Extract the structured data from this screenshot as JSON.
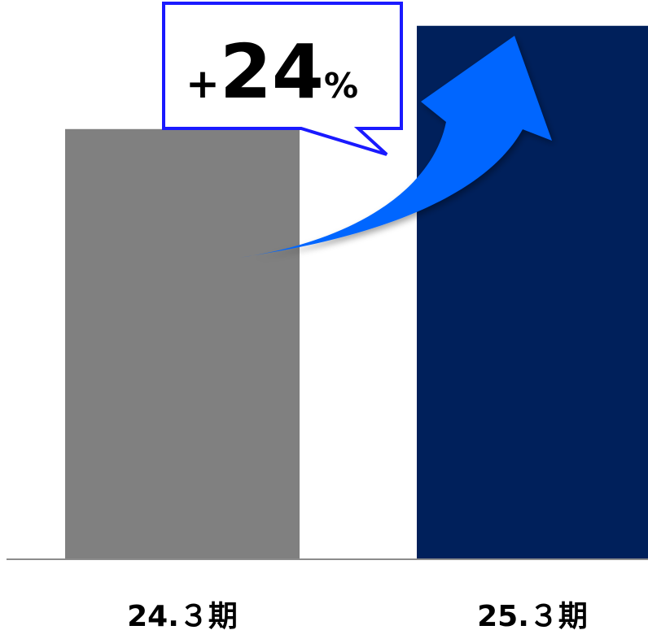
{
  "chart_data": {
    "type": "bar",
    "categories": [
      "24.３期",
      "25.３期"
    ],
    "values": [
      100,
      124
    ],
    "title": "",
    "xlabel": "",
    "ylabel": "",
    "ylim": [
      0,
      130
    ],
    "grid": false,
    "legend": "none",
    "bar_colors": [
      "#808080",
      "#00205b"
    ],
    "annotation": {
      "plus": "+",
      "number": "24",
      "percent": "%"
    },
    "arrow_color": "#0066ff",
    "callout_border_color": "#1a1aff"
  }
}
